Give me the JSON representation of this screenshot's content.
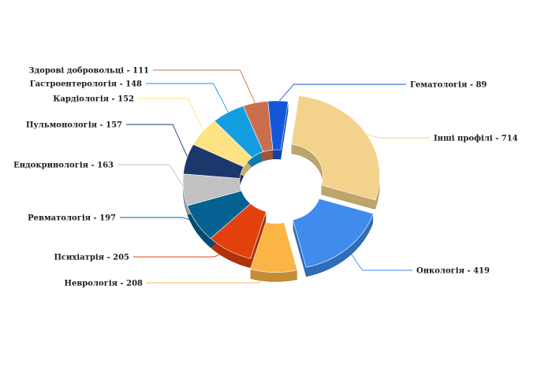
{
  "chart_data": {
    "type": "pie",
    "style": "3d-donut",
    "slices": [
      {
        "label": "Гематологія",
        "value": 89,
        "color": "#1456d8",
        "text": "Гематологія - 89"
      },
      {
        "label": "Інші профілі",
        "value": 714,
        "color": "#f3d38c",
        "text": "Інші профілі - 714"
      },
      {
        "label": "Онкологія",
        "value": 419,
        "color": "#3f8cec",
        "text": "Онкологія - 419"
      },
      {
        "label": "Неврологія",
        "value": 208,
        "color": "#fbb446",
        "text": "Неврологія - 208"
      },
      {
        "label": "Психіатрія",
        "value": 205,
        "color": "#e2410d",
        "text": "Психіатрія - 205"
      },
      {
        "label": "Ревматологія",
        "value": 197,
        "color": "#056192",
        "text": "Ревматологія - 197"
      },
      {
        "label": "Ендокринологія",
        "value": 163,
        "color": "#c2c2c2",
        "text": "Ендокринологія - 163"
      },
      {
        "label": "Пульмонологія",
        "value": 157,
        "color": "#1c376b",
        "text": "Пульмонологія - 157"
      },
      {
        "label": "Кардіологія",
        "value": 152,
        "color": "#fde283",
        "text": "Кардіологія - 152"
      },
      {
        "label": "Гастроентерологія",
        "value": 148,
        "color": "#149ee2",
        "text": "Гастроентерологія - 148"
      },
      {
        "label": "Здорові добровольці",
        "value": 111,
        "color": "#c96f4e",
        "text": "Здорові добровольці - 111"
      }
    ],
    "exploded": [
      "Інші профілі",
      "Онкологія",
      "Неврологія"
    ]
  }
}
